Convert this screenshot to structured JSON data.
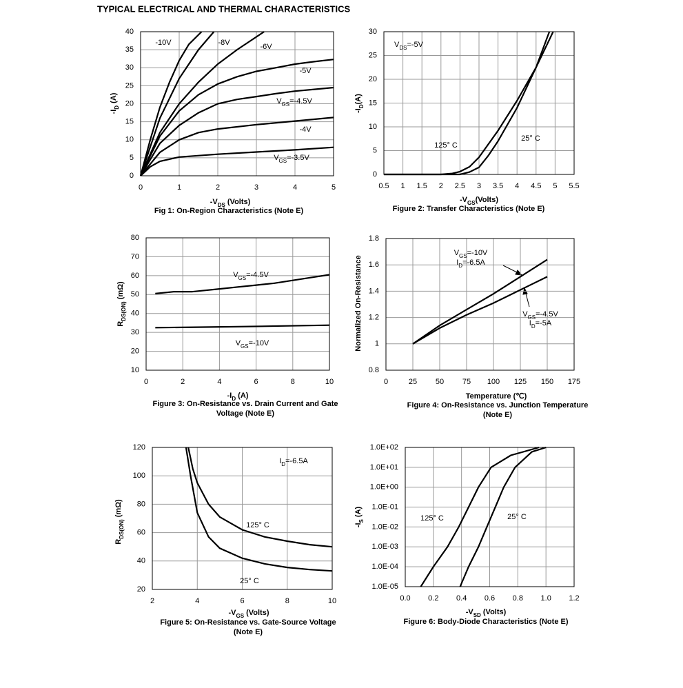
{
  "header": {
    "title": "TYPICAL ELECTRICAL AND THERMAL CHARACTERISTICS"
  },
  "chart_data": [
    {
      "type": "line",
      "title": [
        "Fig 1: On-Region Characteristics (Note E)"
      ],
      "xlabel": [
        "-V",
        "DS",
        " (Volts)"
      ],
      "ylabel": [
        "-I",
        "D",
        " (A)"
      ],
      "color": "#000000",
      "grid": true,
      "xlim": [
        0,
        5
      ],
      "ylim": [
        0,
        40
      ],
      "xticks": [
        0,
        1,
        2,
        3,
        4,
        5
      ],
      "yticks": [
        0,
        5,
        10,
        15,
        20,
        25,
        30,
        35,
        40
      ],
      "annotations": [],
      "series": [
        {
          "name": "-10V",
          "x": [
            0,
            0.25,
            0.5,
            0.75,
            1,
            1.25,
            1.58
          ],
          "values": [
            0,
            10,
            19,
            26,
            32,
            36.5,
            40
          ]
        },
        {
          "name": "-8V",
          "x": [
            0,
            0.25,
            0.5,
            1,
            1.5,
            1.9
          ],
          "values": [
            0,
            8,
            16,
            27,
            35,
            40
          ]
        },
        {
          "name": "-6V",
          "x": [
            0,
            0.5,
            1,
            1.5,
            2,
            2.5,
            3.2
          ],
          "values": [
            0,
            12,
            20,
            26,
            31,
            35,
            40
          ]
        },
        {
          "name": "-5V",
          "x": [
            0,
            0.5,
            1,
            1.5,
            2,
            2.5,
            3,
            3.5,
            4,
            4.5,
            5
          ],
          "values": [
            0,
            11,
            18,
            22.5,
            25.5,
            27.5,
            29,
            30,
            31,
            31.7,
            32.3
          ]
        },
        {
          "name": [
            "V",
            "GS",
            "=-4.5V"
          ],
          "x": [
            0,
            0.5,
            1,
            1.5,
            2,
            2.5,
            3,
            3.5,
            4,
            4.5,
            5
          ],
          "values": [
            0,
            9,
            14,
            17.5,
            20,
            21.2,
            22,
            22.8,
            23.5,
            24,
            24.5
          ]
        },
        {
          "name": "-4V",
          "x": [
            0,
            0.5,
            1,
            1.5,
            2,
            3,
            4,
            5
          ],
          "values": [
            0,
            6.5,
            10,
            12,
            13,
            14.2,
            15.2,
            16.2
          ]
        },
        {
          "name": [
            "V",
            "GS",
            "=-3.5V"
          ],
          "x": [
            0,
            0.25,
            0.5,
            1,
            2,
            3,
            4,
            5
          ],
          "values": [
            0,
            2.5,
            4,
            5.2,
            6,
            6.6,
            7.2,
            7.9
          ]
        }
      ]
    },
    {
      "type": "line",
      "title": [
        "Figure 2: Transfer Characteristics (Note E)"
      ],
      "xlabel": [
        "-V",
        "GS",
        "(Volts)"
      ],
      "ylabel": [
        "-I",
        "D",
        "(A)"
      ],
      "color": "#000000",
      "grid": true,
      "xlim": [
        0.5,
        5.5
      ],
      "ylim": [
        0,
        30
      ],
      "xticks": [
        0.5,
        1,
        1.5,
        2,
        2.5,
        3,
        3.5,
        4,
        4.5,
        5,
        5.5
      ],
      "yticks": [
        0,
        5,
        10,
        15,
        20,
        25,
        30
      ],
      "annotations": [
        [
          "V",
          "DS",
          "=-5V"
        ]
      ],
      "series": [
        {
          "name": "125° C",
          "x": [
            0.5,
            2,
            2.3,
            2.5,
            2.75,
            3,
            3.5,
            4,
            4.5,
            4.85
          ],
          "values": [
            0,
            0,
            0.2,
            0.6,
            1.6,
            3.6,
            9.2,
            15.5,
            22.5,
            30
          ]
        },
        {
          "name": "25° C",
          "x": [
            0.5,
            2.5,
            2.75,
            3,
            3.25,
            3.5,
            4,
            4.5,
            4.95
          ],
          "values": [
            0,
            0,
            0.5,
            1.5,
            4,
            7,
            14,
            22.5,
            30
          ]
        }
      ]
    },
    {
      "type": "line",
      "title": [
        "Figure 3: On-Resistance vs. Drain Current and Gate",
        "Voltage (Note E)"
      ],
      "xlabel": [
        "-I",
        "D",
        " (A)"
      ],
      "ylabel": [
        "R",
        "DS(ON)",
        " (mΩ)"
      ],
      "color": "#000000",
      "grid": true,
      "xlim": [
        0,
        10
      ],
      "ylim": [
        10,
        80
      ],
      "xticks": [
        0,
        2,
        4,
        6,
        8,
        10
      ],
      "yticks": [
        10,
        20,
        30,
        40,
        50,
        60,
        70,
        80
      ],
      "annotations": [],
      "series": [
        {
          "name": [
            "V",
            "GS",
            "=-4.5V"
          ],
          "x": [
            0.5,
            1.5,
            2.5,
            3,
            4,
            5,
            6,
            7,
            8,
            9,
            10
          ],
          "values": [
            50.5,
            51.5,
            51.5,
            52,
            53,
            54,
            55,
            56,
            57.5,
            59,
            60.5
          ]
        },
        {
          "name": [
            "V",
            "GS",
            "=-10V"
          ],
          "x": [
            0.5,
            5,
            10
          ],
          "values": [
            32.5,
            33,
            33.8
          ]
        }
      ]
    },
    {
      "type": "line",
      "title": [
        "Figure 4: On-Resistance vs. Junction Temperature",
        "(Note E)"
      ],
      "xlabel": "Temperature (℃)",
      "ylabel": "Normalized On-Resistance",
      "color": "#000000",
      "grid": true,
      "xlim": [
        0,
        175
      ],
      "ylim": [
        0.8,
        1.8
      ],
      "xticks": [
        0,
        25,
        50,
        75,
        100,
        125,
        150,
        175
      ],
      "yticks": [
        0.8,
        1,
        1.2,
        1.4,
        1.6,
        1.8
      ],
      "annotations": [
        [
          "I",
          "D",
          "=-6.5A"
        ],
        [
          "I",
          "D",
          "=-5A"
        ]
      ],
      "series": [
        {
          "name": [
            "V",
            "GS",
            "=-10V"
          ],
          "x": [
            25,
            50,
            75,
            100,
            125,
            150
          ],
          "values": [
            1,
            1.14,
            1.26,
            1.38,
            1.51,
            1.64
          ]
        },
        {
          "name": [
            "V",
            "GS",
            "=-4.5V"
          ],
          "x": [
            25,
            50,
            75,
            100,
            125,
            150
          ],
          "values": [
            1,
            1.12,
            1.22,
            1.31,
            1.41,
            1.51
          ]
        }
      ]
    },
    {
      "type": "line",
      "title": [
        "Figure 5: On-Resistance vs. Gate-Source Voltage",
        "(Note E)"
      ],
      "xlabel": [
        "-V",
        "GS",
        " (Volts)"
      ],
      "ylabel": [
        "R",
        "DS(ON)",
        " (mΩ)"
      ],
      "color": "#000000",
      "grid": true,
      "xlim": [
        2,
        10
      ],
      "ylim": [
        20,
        120
      ],
      "xticks": [
        2,
        4,
        6,
        8,
        10
      ],
      "yticks": [
        20,
        40,
        60,
        80,
        100,
        120
      ],
      "annotations": [
        [
          "I",
          "D",
          "=-6.5A"
        ]
      ],
      "series": [
        {
          "name": "125° C",
          "x": [
            3.6,
            3.8,
            4,
            4.5,
            5,
            6,
            7,
            8,
            9,
            10
          ],
          "values": [
            120,
            105,
            95,
            80,
            71,
            62,
            57,
            54,
            51.5,
            50
          ]
        },
        {
          "name": "25° C",
          "x": [
            3.5,
            3.7,
            4,
            4.5,
            5,
            6,
            7,
            8,
            9,
            10
          ],
          "values": [
            120,
            100,
            74,
            57,
            49,
            42,
            38,
            35.5,
            34,
            33
          ]
        }
      ]
    },
    {
      "type": "line",
      "title": [
        "Figure 6: Body-Diode Characteristics (Note E)"
      ],
      "xlabel": [
        "-V",
        "SD",
        " (Volts)"
      ],
      "ylabel": [
        "-I",
        "S",
        " (A)"
      ],
      "color": "#000000",
      "grid": true,
      "ylog": true,
      "xlim": [
        0,
        1.2
      ],
      "ylim": [
        1e-05,
        100
      ],
      "xticks": [
        {
          "value": 0,
          "label": "0.0"
        },
        0.2,
        0.4,
        0.6,
        0.8,
        {
          "value": 1,
          "label": "1.0"
        },
        1.2
      ],
      "yticks": [
        {
          "value": 1e-05,
          "label": "1.0E-05"
        },
        {
          "value": 0.0001,
          "label": "1.0E-04"
        },
        {
          "value": 0.001,
          "label": "1.0E-03"
        },
        {
          "value": 0.01,
          "label": "1.0E-02"
        },
        {
          "value": 0.1,
          "label": "1.0E-01"
        },
        {
          "value": 1,
          "label": "1.0E+00"
        },
        {
          "value": 10,
          "label": "1.0E+01"
        },
        {
          "value": 100,
          "label": "1.0E+02"
        }
      ],
      "annotations": [],
      "series": [
        {
          "name": "125° C",
          "x": [
            0.11,
            0.2,
            0.3,
            0.38,
            0.45,
            0.52,
            0.61,
            0.75,
            0.95
          ],
          "values": [
            1e-05,
            0.0001,
            0.001,
            0.01,
            0.1,
            1,
            10,
            40,
            100
          ]
        },
        {
          "name": "25° C",
          "x": [
            0.39,
            0.45,
            0.52,
            0.58,
            0.64,
            0.7,
            0.78,
            0.9,
            1.0
          ],
          "values": [
            1e-05,
            0.0001,
            0.001,
            0.01,
            0.1,
            1,
            10,
            60,
            100
          ]
        }
      ]
    }
  ]
}
